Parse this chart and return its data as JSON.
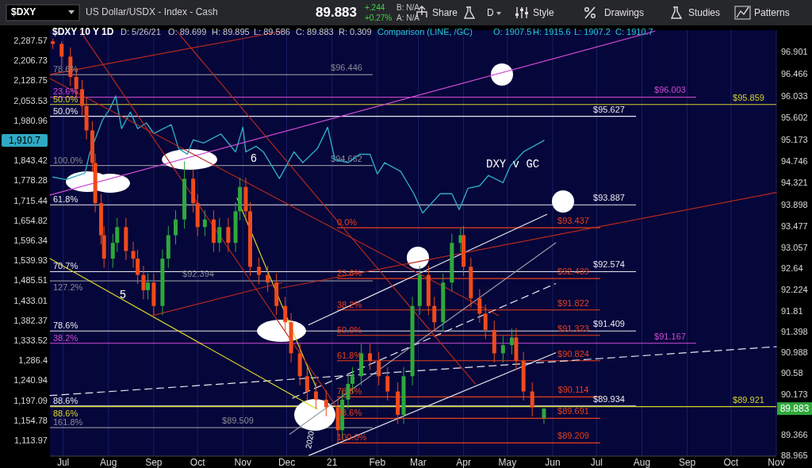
{
  "chart_data": {
    "type": "candlestick",
    "title": "$DXY 10 Y 1D",
    "x": [
      "2020-06-24",
      "2020-06-30",
      "2020-07-06",
      "2020-07-10",
      "2020-07-14",
      "2020-07-17",
      "2020-07-21",
      "2020-07-23",
      "2020-07-27",
      "2020-07-29",
      "2020-08-04",
      "2020-08-07",
      "2020-08-13",
      "2020-08-18",
      "2020-08-21",
      "2020-08-25",
      "2020-08-28",
      "2020-09-01",
      "2020-09-07",
      "2020-09-11",
      "2020-09-16",
      "2020-09-22",
      "2020-09-28",
      "2020-10-01",
      "2020-10-06",
      "2020-10-12",
      "2020-10-16",
      "2020-10-22",
      "2020-10-27",
      "2020-10-30",
      "2020-11-03",
      "2020-11-06",
      "2020-11-12",
      "2020-11-18",
      "2020-11-24",
      "2020-11-30",
      "2020-12-04",
      "2020-12-10",
      "2020-12-15",
      "2020-12-21",
      "2020-12-28",
      "2021-01-05",
      "2021-01-08",
      "2021-01-12",
      "2021-01-15",
      "2021-01-21",
      "2021-01-27",
      "2021-02-02",
      "2021-02-08",
      "2021-02-15",
      "2021-02-19",
      "2021-02-25",
      "2021-03-02",
      "2021-03-08",
      "2021-03-12",
      "2021-03-18",
      "2021-03-24",
      "2021-03-30",
      "2021-04-01",
      "2021-04-06",
      "2021-04-12",
      "2021-04-16",
      "2021-04-22",
      "2021-04-28",
      "2021-05-04",
      "2021-05-07",
      "2021-05-12",
      "2021-05-18",
      "2021-05-26"
    ],
    "ohlc": [
      [
        97.1,
        97.15,
        96.95,
        97.05
      ],
      [
        97.05,
        97.1,
        96.62,
        96.8
      ],
      [
        96.8,
        96.98,
        96.22,
        96.4
      ],
      [
        96.4,
        96.58,
        95.98,
        96.16
      ],
      [
        96.16,
        96.34,
        95.65,
        95.83
      ],
      [
        95.83,
        96.01,
        95.17,
        95.35
      ],
      [
        95.35,
        95.53,
        94.53,
        94.71
      ],
      [
        94.71,
        94.89,
        93.74,
        93.92
      ],
      [
        93.92,
        94.1,
        93.11,
        93.29
      ],
      [
        93.29,
        93.47,
        92.65,
        92.83
      ],
      [
        92.83,
        93.32,
        92.65,
        93.14
      ],
      [
        93.14,
        93.63,
        92.96,
        93.45
      ],
      [
        93.45,
        93.63,
        92.8,
        92.98
      ],
      [
        92.98,
        93.16,
        92.65,
        92.83
      ],
      [
        92.83,
        93.01,
        92.33,
        92.51
      ],
      [
        92.51,
        92.69,
        92.03,
        92.21
      ],
      [
        92.21,
        92.54,
        92.03,
        92.36
      ],
      [
        92.36,
        92.54,
        91.72,
        91.9
      ],
      [
        91.9,
        93.01,
        91.72,
        92.83
      ],
      [
        92.83,
        93.47,
        92.65,
        93.29
      ],
      [
        93.29,
        93.78,
        93.11,
        93.6
      ],
      [
        93.6,
        94.74,
        93.42,
        94.4
      ],
      [
        94.4,
        94.58,
        93.74,
        93.92
      ],
      [
        93.92,
        94.1,
        93.27,
        93.45
      ],
      [
        93.45,
        93.78,
        93.27,
        93.6
      ],
      [
        93.6,
        93.78,
        92.96,
        93.14
      ],
      [
        93.14,
        93.63,
        92.96,
        93.45
      ],
      [
        93.45,
        93.63,
        92.96,
        93.14
      ],
      [
        93.14,
        93.94,
        92.96,
        93.76
      ],
      [
        93.76,
        94.42,
        93.58,
        94.24
      ],
      [
        94.24,
        94.42,
        93.58,
        93.76
      ],
      [
        93.76,
        93.94,
        92.49,
        92.67
      ],
      [
        92.67,
        92.85,
        92.33,
        92.51
      ],
      [
        92.51,
        92.69,
        92.18,
        92.36
      ],
      [
        92.36,
        92.54,
        91.72,
        91.9
      ],
      [
        91.9,
        92.08,
        91.4,
        91.58
      ],
      [
        91.58,
        91.76,
        90.79,
        90.97
      ],
      [
        90.97,
        91.15,
        90.34,
        90.52
      ],
      [
        90.52,
        90.7,
        90.04,
        90.22
      ],
      [
        90.22,
        90.4,
        89.88,
        90.06
      ],
      [
        90.06,
        90.24,
        89.73,
        89.91
      ],
      [
        89.91,
        90.09,
        89.209,
        89.46
      ],
      [
        89.46,
        90.24,
        89.28,
        90.06
      ],
      [
        90.06,
        90.55,
        89.88,
        90.37
      ],
      [
        90.37,
        90.7,
        90.19,
        90.52
      ],
      [
        90.52,
        91.15,
        90.34,
        90.97
      ],
      [
        90.97,
        91.15,
        90.64,
        90.82
      ],
      [
        90.82,
        91.0,
        90.34,
        90.52
      ],
      [
        90.52,
        90.7,
        90.04,
        90.22
      ],
      [
        90.22,
        90.4,
        89.58,
        89.76
      ],
      [
        89.76,
        90.7,
        89.58,
        90.52
      ],
      [
        90.52,
        92.08,
        90.34,
        91.9
      ],
      [
        91.9,
        92.69,
        91.72,
        92.51
      ],
      [
        92.51,
        92.69,
        91.72,
        91.9
      ],
      [
        91.9,
        92.08,
        91.4,
        91.58
      ],
      [
        91.58,
        92.54,
        91.4,
        92.36
      ],
      [
        92.36,
        93.32,
        92.18,
        93.14
      ],
      [
        93.14,
        93.437,
        92.96,
        93.29
      ],
      [
        93.29,
        93.47,
        92.49,
        92.67
      ],
      [
        92.67,
        92.85,
        91.87,
        92.05
      ],
      [
        92.05,
        92.23,
        91.57,
        91.75
      ],
      [
        91.75,
        91.93,
        91.25,
        91.43
      ],
      [
        91.43,
        91.61,
        90.79,
        90.97
      ],
      [
        90.97,
        91.31,
        90.79,
        91.13
      ],
      [
        91.13,
        91.46,
        90.95,
        91.28
      ],
      [
        91.28,
        91.46,
        90.64,
        90.82
      ],
      [
        90.82,
        91.0,
        90.04,
        90.22
      ],
      [
        90.22,
        90.4,
        89.73,
        89.91
      ],
      [
        89.699,
        89.895,
        89.586,
        89.883
      ]
    ],
    "colors": [
      "#f04a1a",
      "#f04a1a",
      "#f04a1a",
      "#f04a1a",
      "#f04a1a",
      "#f04a1a",
      "#f04a1a",
      "#f04a1a",
      "#f04a1a",
      "#f04a1a",
      "#2fa83a",
      "#2fa83a",
      "#f04a1a",
      "#f04a1a",
      "#f04a1a",
      "#f04a1a",
      "#2fa83a",
      "#f04a1a",
      "#2fa83a",
      "#2fa83a",
      "#2fa83a",
      "#2fa83a",
      "#f04a1a",
      "#f04a1a",
      "#2fa83a",
      "#f04a1a",
      "#2fa83a",
      "#f04a1a",
      "#2fa83a",
      "#2fa83a",
      "#f04a1a",
      "#f04a1a",
      "#f04a1a",
      "#f04a1a",
      "#f04a1a",
      "#f04a1a",
      "#f04a1a",
      "#f04a1a",
      "#f04a1a",
      "#f04a1a",
      "#f04a1a",
      "#f04a1a",
      "#2fa83a",
      "#2fa83a",
      "#2fa83a",
      "#2fa83a",
      "#f04a1a",
      "#f04a1a",
      "#f04a1a",
      "#f04a1a",
      "#2fa83a",
      "#2fa83a",
      "#2fa83a",
      "#f04a1a",
      "#f04a1a",
      "#2fa83a",
      "#2fa83a",
      "#2fa83a",
      "#f04a1a",
      "#f04a1a",
      "#f04a1a",
      "#f04a1a",
      "#f04a1a",
      "#2fa83a",
      "#2fa83a",
      "#f04a1a",
      "#f04a1a",
      "#f04a1a",
      "#2fa83a"
    ],
    "series": [
      {
        "type": "line",
        "axis": "y2",
        "color": "#2fa9c4",
        "line_style": "solid",
        "x": [
          "2020-06-24",
          "2020-07-03",
          "2020-07-16",
          "2020-07-19",
          "2020-07-28",
          "2020-08-02",
          "2020-08-06",
          "2020-08-10",
          "2020-08-16",
          "2020-08-21",
          "2020-08-27",
          "2020-09-01",
          "2020-09-13",
          "2020-09-18",
          "2020-09-24",
          "2020-09-28",
          "2020-10-05",
          "2020-10-17",
          "2020-10-27",
          "2020-11-01",
          "2020-11-03",
          "2020-11-10",
          "2020-11-15",
          "2020-11-26",
          "2020-12-06",
          "2020-12-12",
          "2020-12-22",
          "2020-12-29",
          "2021-01-03",
          "2021-01-12",
          "2021-01-20",
          "2021-01-27",
          "2021-02-01",
          "2021-02-06",
          "2021-02-17",
          "2021-02-26",
          "2021-03-04",
          "2021-03-16",
          "2021-03-24",
          "2021-03-29",
          "2021-04-04",
          "2021-04-12",
          "2021-04-18",
          "2021-04-28",
          "2021-05-03",
          "2021-05-12",
          "2021-05-26"
        ],
        "values": [
          1789,
          1781,
          1802,
          1864,
          1983,
          2023,
          2070,
          1952,
          2011,
          1952,
          1972,
          1935,
          1966,
          1883,
          1864,
          1913,
          1902,
          1933,
          1872,
          1957,
          1872,
          1891,
          1872,
          1784,
          1872,
          1836,
          1883,
          1957,
          1846,
          1836,
          1864,
          1864,
          1799,
          1836,
          1807,
          1736,
          1677,
          1736,
          1736,
          1687,
          1753,
          1761,
          1794,
          1771,
          1825,
          1872,
          1910.7
        ]
      },
      {
        "type": "line",
        "color": "#d04bd6",
        "line_style": "solid",
        "x": [
          "2020-06-22",
          "2021-08-10"
        ],
        "values": [
          94.08,
          97.3
        ]
      },
      {
        "type": "line",
        "color": "#e8e8f0",
        "line_style": "solid",
        "x": [
          "2020-12-16",
          "2021-05-28"
        ],
        "values": [
          91.53,
          93.7
        ]
      },
      {
        "type": "line",
        "color": "#e8e8f0",
        "line_style": "solid",
        "x": [
          "2020-12-16",
          "2021-06-03"
        ],
        "values": [
          88.96,
          90.98
        ]
      },
      {
        "type": "line",
        "color": "#9a9aa8",
        "line_style": "solid",
        "x": [
          "2020-12-03",
          "2021-06-03"
        ],
        "values": [
          89.38,
          93.14
        ]
      },
      {
        "type": "line",
        "color": "#e8e8f0",
        "line_style": "dashed",
        "x": [
          "2020-12-05",
          "2021-06-03"
        ],
        "values": [
          90.09,
          92.34
        ]
      },
      {
        "type": "line",
        "color": "#e8e8f0",
        "line_style": "dashed",
        "x": [
          "2020-06-22",
          "2021-11-01"
        ],
        "values": [
          90.14,
          91.1
        ]
      },
      {
        "type": "line",
        "color": "#d8d42a",
        "line_style": "solid",
        "x": [
          "2020-06-22",
          "2020-12-22"
        ],
        "values": [
          92.83,
          89.87
        ]
      },
      {
        "type": "line",
        "color": "#d8d42a",
        "line_style": "solid",
        "x": [
          "2020-10-28",
          "2020-12-21"
        ],
        "values": [
          94.02,
          90.31
        ]
      },
      {
        "type": "line",
        "color": "#b52a1c",
        "line_style": "solid",
        "x": [
          "2020-07-13",
          "2021-01-04"
        ],
        "values": [
          97.29,
          89.92
        ]
      },
      {
        "type": "line",
        "color": "#b52a1c",
        "line_style": "solid",
        "x": [
          "2020-06-22",
          "2021-04-25"
        ],
        "values": [
          96.37,
          91.71
        ]
      },
      {
        "type": "line",
        "color": "#b52a1c",
        "line_style": "solid",
        "x": [
          "2020-09-17",
          "2021-04-09"
        ],
        "values": [
          97.29,
          90.37
        ]
      },
      {
        "type": "line",
        "color": "#b52a1c",
        "line_style": "solid",
        "x": [
          "2020-06-22",
          "2020-11-28"
        ],
        "values": [
          96.45,
          97.3
        ]
      },
      {
        "type": "line",
        "color": "#b52a1c",
        "line_style": "solid",
        "x": [
          "2020-11-27",
          "2021-11-01"
        ],
        "values": [
          92.25,
          94.13
        ]
      },
      {
        "type": "line",
        "color": "#b52a1c",
        "line_style": "solid",
        "x": [
          "2020-08-31",
          "2020-11-28"
        ],
        "values": [
          91.71,
          92.36
        ]
      }
    ],
    "xlim": [
      "2020-06-22",
      "2021-11-01"
    ],
    "xticks": [
      {
        "value": "2020-07-01",
        "label": "Jul"
      },
      {
        "value": "2020-08-01",
        "label": "Aug"
      },
      {
        "value": "2020-09-01",
        "label": "Sep"
      },
      {
        "value": "2020-10-01",
        "label": "Oct"
      },
      {
        "value": "2020-11-01",
        "label": "Nov"
      },
      {
        "value": "2020-12-01",
        "label": "Dec"
      },
      {
        "value": "2021-01-01",
        "label": "21"
      },
      {
        "value": "2021-02-01",
        "label": "Feb"
      },
      {
        "value": "2021-03-01",
        "label": "Mar"
      },
      {
        "value": "2021-04-01",
        "label": "Apr"
      },
      {
        "value": "2021-05-01",
        "label": "May"
      },
      {
        "value": "2021-06-01",
        "label": "Jun"
      },
      {
        "value": "2021-07-01",
        "label": "Jul"
      },
      {
        "value": "2021-08-01",
        "label": "Aug"
      },
      {
        "value": "2021-09-01",
        "label": "Sep"
      },
      {
        "value": "2021-10-01",
        "label": "Oct"
      },
      {
        "value": "2021-11-01",
        "label": "Nov"
      }
    ],
    "ylim": [
      88.95,
      97.32
    ],
    "yticks": [
      96.901,
      96.466,
      96.033,
      95.602,
      95.173,
      94.746,
      94.321,
      93.898,
      93.477,
      93.057,
      92.64,
      92.224,
      91.81,
      91.398,
      90.988,
      90.58,
      90.173,
      89.366,
      88.965
    ],
    "y2lim": [
      1082.6,
      2330.5
    ],
    "y2ticks": [
      {
        "value": 2287.57,
        "label": "2,287.57"
      },
      {
        "value": 2206.73,
        "label": "2,206.73"
      },
      {
        "value": 2128.75,
        "label": "2,128.75"
      },
      {
        "value": 2053.53,
        "label": "2,053.53"
      },
      {
        "value": 1980.96,
        "label": "1,980.96"
      },
      {
        "value": 1843.42,
        "label": "1,843.42"
      },
      {
        "value": 1778.28,
        "label": "1,778.28"
      },
      {
        "value": 1715.44,
        "label": "1,715.44"
      },
      {
        "value": 1654.82,
        "label": "1,654.82"
      },
      {
        "value": 1596.34,
        "label": "1,596.34"
      },
      {
        "value": 1539.93,
        "label": "1,539.93"
      },
      {
        "value": 1485.51,
        "label": "1,485.51"
      },
      {
        "value": 1433.01,
        "label": "1,433.01"
      },
      {
        "value": 1382.37,
        "label": "1,382.37"
      },
      {
        "value": 1333.52,
        "label": "1,333.52"
      },
      {
        "value": 1286.4,
        "label": "1,286.4"
      },
      {
        "value": 1240.94,
        "label": "1,240.94"
      },
      {
        "value": 1197.09,
        "label": "1,197.09"
      },
      {
        "value": 1154.78,
        "label": "1,154.78"
      },
      {
        "value": 1113.97,
        "label": "1,113.97"
      }
    ],
    "log": "y2",
    "grid": "x",
    "marker": "none",
    "ref_lines": [
      {
        "axis": "y",
        "value": 96.446,
        "label": "$96.446",
        "color": "#8a8a96"
      },
      {
        "axis": "y",
        "value": 96.003,
        "label": "$96.003",
        "color": "#d04bd6"
      },
      {
        "axis": "y",
        "value": 95.859,
        "label": "$95.859",
        "color": "#d8d42a"
      },
      {
        "axis": "y",
        "value": 95.627,
        "label": "$95.627",
        "color": "#e8e8f0"
      },
      {
        "axis": "y",
        "value": 94.662,
        "label": "$94.662",
        "color": "#8a8a96"
      },
      {
        "axis": "y",
        "value": 93.887,
        "label": "$93.887",
        "color": "#e8e8f0"
      },
      {
        "axis": "y",
        "value": 93.437,
        "label": "$93.437",
        "color": "#e8401a"
      },
      {
        "axis": "y",
        "value": 92.574,
        "label": "$92.574",
        "color": "#e8e8f0"
      },
      {
        "axis": "y",
        "value": 92.394,
        "label": "$92.394",
        "color": "#8a8a96"
      },
      {
        "axis": "y",
        "value": 92.439,
        "label": "$92.439",
        "color": "#e8401a"
      },
      {
        "axis": "y",
        "value": 91.822,
        "label": "$91.822",
        "color": "#e8401a"
      },
      {
        "axis": "y",
        "value": 91.409,
        "label": "$91.409",
        "color": "#e8e8f0"
      },
      {
        "axis": "y",
        "value": 91.323,
        "label": "$91.323",
        "color": "#e8401a"
      },
      {
        "axis": "y",
        "value": 91.167,
        "label": "$91.167",
        "color": "#d04bd6"
      },
      {
        "axis": "y",
        "value": 90.824,
        "label": "$90.824",
        "color": "#e8401a"
      },
      {
        "axis": "y",
        "value": 90.114,
        "label": "$90.114",
        "color": "#e8401a"
      },
      {
        "axis": "y",
        "value": 89.934,
        "label": "$89.934",
        "color": "#e8e8f0"
      },
      {
        "axis": "y",
        "value": 89.921,
        "label": "$89.921",
        "color": "#d8d42a"
      },
      {
        "axis": "y",
        "value": 89.691,
        "label": "$89.691",
        "color": "#e8401a"
      },
      {
        "axis": "y",
        "value": 89.509,
        "label": "$89.509",
        "color": "#8a8a96"
      },
      {
        "axis": "y",
        "value": 89.209,
        "label": "$89.209",
        "color": "#e8401a"
      }
    ],
    "annotations": [
      "$DXY",
      "US Dollar/USDX - Index - Cash",
      "89.883",
      "+.244",
      "+0.27%",
      "B: N/A",
      "A: N/A",
      "Share",
      "D",
      "Style",
      "Drawings",
      "Studies",
      "Patterns",
      "D: 5/26/21",
      "O: 89.699",
      "H: 89.895",
      "L: 89.586",
      "C: 89.883",
      "R: 0.309",
      "Comparison (LINE, /GC)",
      "O: 1907.5",
      "H: 1915.6",
      "L: 1907.2",
      "C: 1910.7",
      "1,910.7",
      "89.883",
      "78.6%",
      "23.6%",
      "50.0%",
      "50.0%",
      "100.0%",
      "61.8%",
      "70.7%",
      "127.2%",
      "78.6%",
      "38.2%",
      "88.6%",
      "88.6%",
      "161.8%",
      "0.0%",
      "23.6%",
      "38.2%",
      "50.0%",
      "61.8%",
      "78.6%",
      "88.6%",
      "100.0%",
      "5",
      "6",
      "2020",
      "DXY v GC"
    ]
  }
}
